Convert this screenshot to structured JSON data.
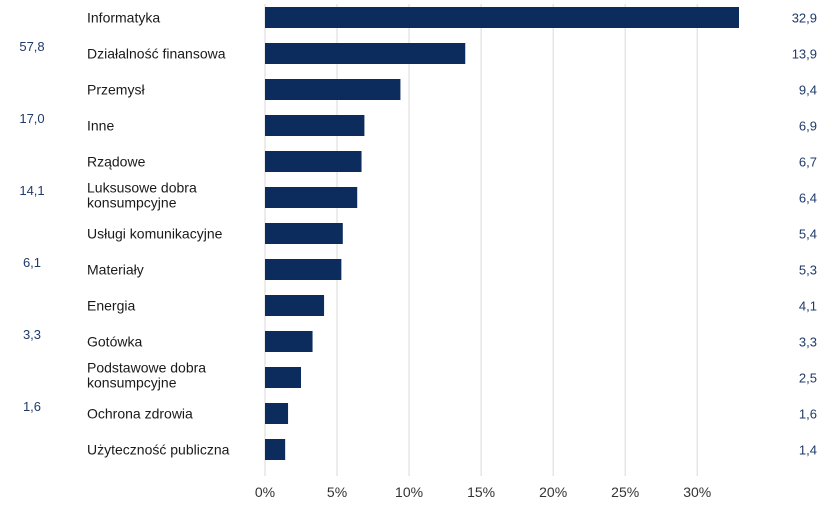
{
  "chart_data": {
    "type": "bar",
    "orientation": "horizontal",
    "categories": [
      "Informatyka",
      "Działalność finansowa",
      "Przemysł",
      "Inne",
      "Rządowe",
      "Luksusowe dobra konsumpcyjne",
      "Usługi komunikacyjne",
      "Materiały",
      "Energia",
      "Gotówka",
      "Podstawowe dobra konsumpcyjne",
      "Ochrona zdrowia",
      "Użyteczność publiczna"
    ],
    "values": [
      32.9,
      13.9,
      9.4,
      6.9,
      6.7,
      6.4,
      5.4,
      5.3,
      4.1,
      3.3,
      2.5,
      1.6,
      1.4
    ],
    "value_labels": [
      "32,9",
      "13,9",
      "9,4",
      "6,9",
      "6,7",
      "6,4",
      "5,4",
      "5,3",
      "4,1",
      "3,3",
      "2,5",
      "1,6",
      "1,4"
    ],
    "left_labels": [
      "57,8",
      "17,0",
      "14,1",
      "6,1",
      "3,3",
      "1,6"
    ],
    "x_ticks": [
      "0%",
      "5%",
      "10%",
      "15%",
      "20%",
      "25%",
      "30%"
    ],
    "x_tick_values": [
      0,
      5,
      10,
      15,
      20,
      25,
      30
    ],
    "xlim": [
      0,
      35
    ],
    "title": "",
    "xlabel": "",
    "ylabel": "",
    "grid": "vertical gridlines",
    "legend": "none"
  },
  "colors": {
    "bar": "#0d2c5e",
    "grid": "#d9d9d9",
    "value_text": "#1f3a6b"
  }
}
